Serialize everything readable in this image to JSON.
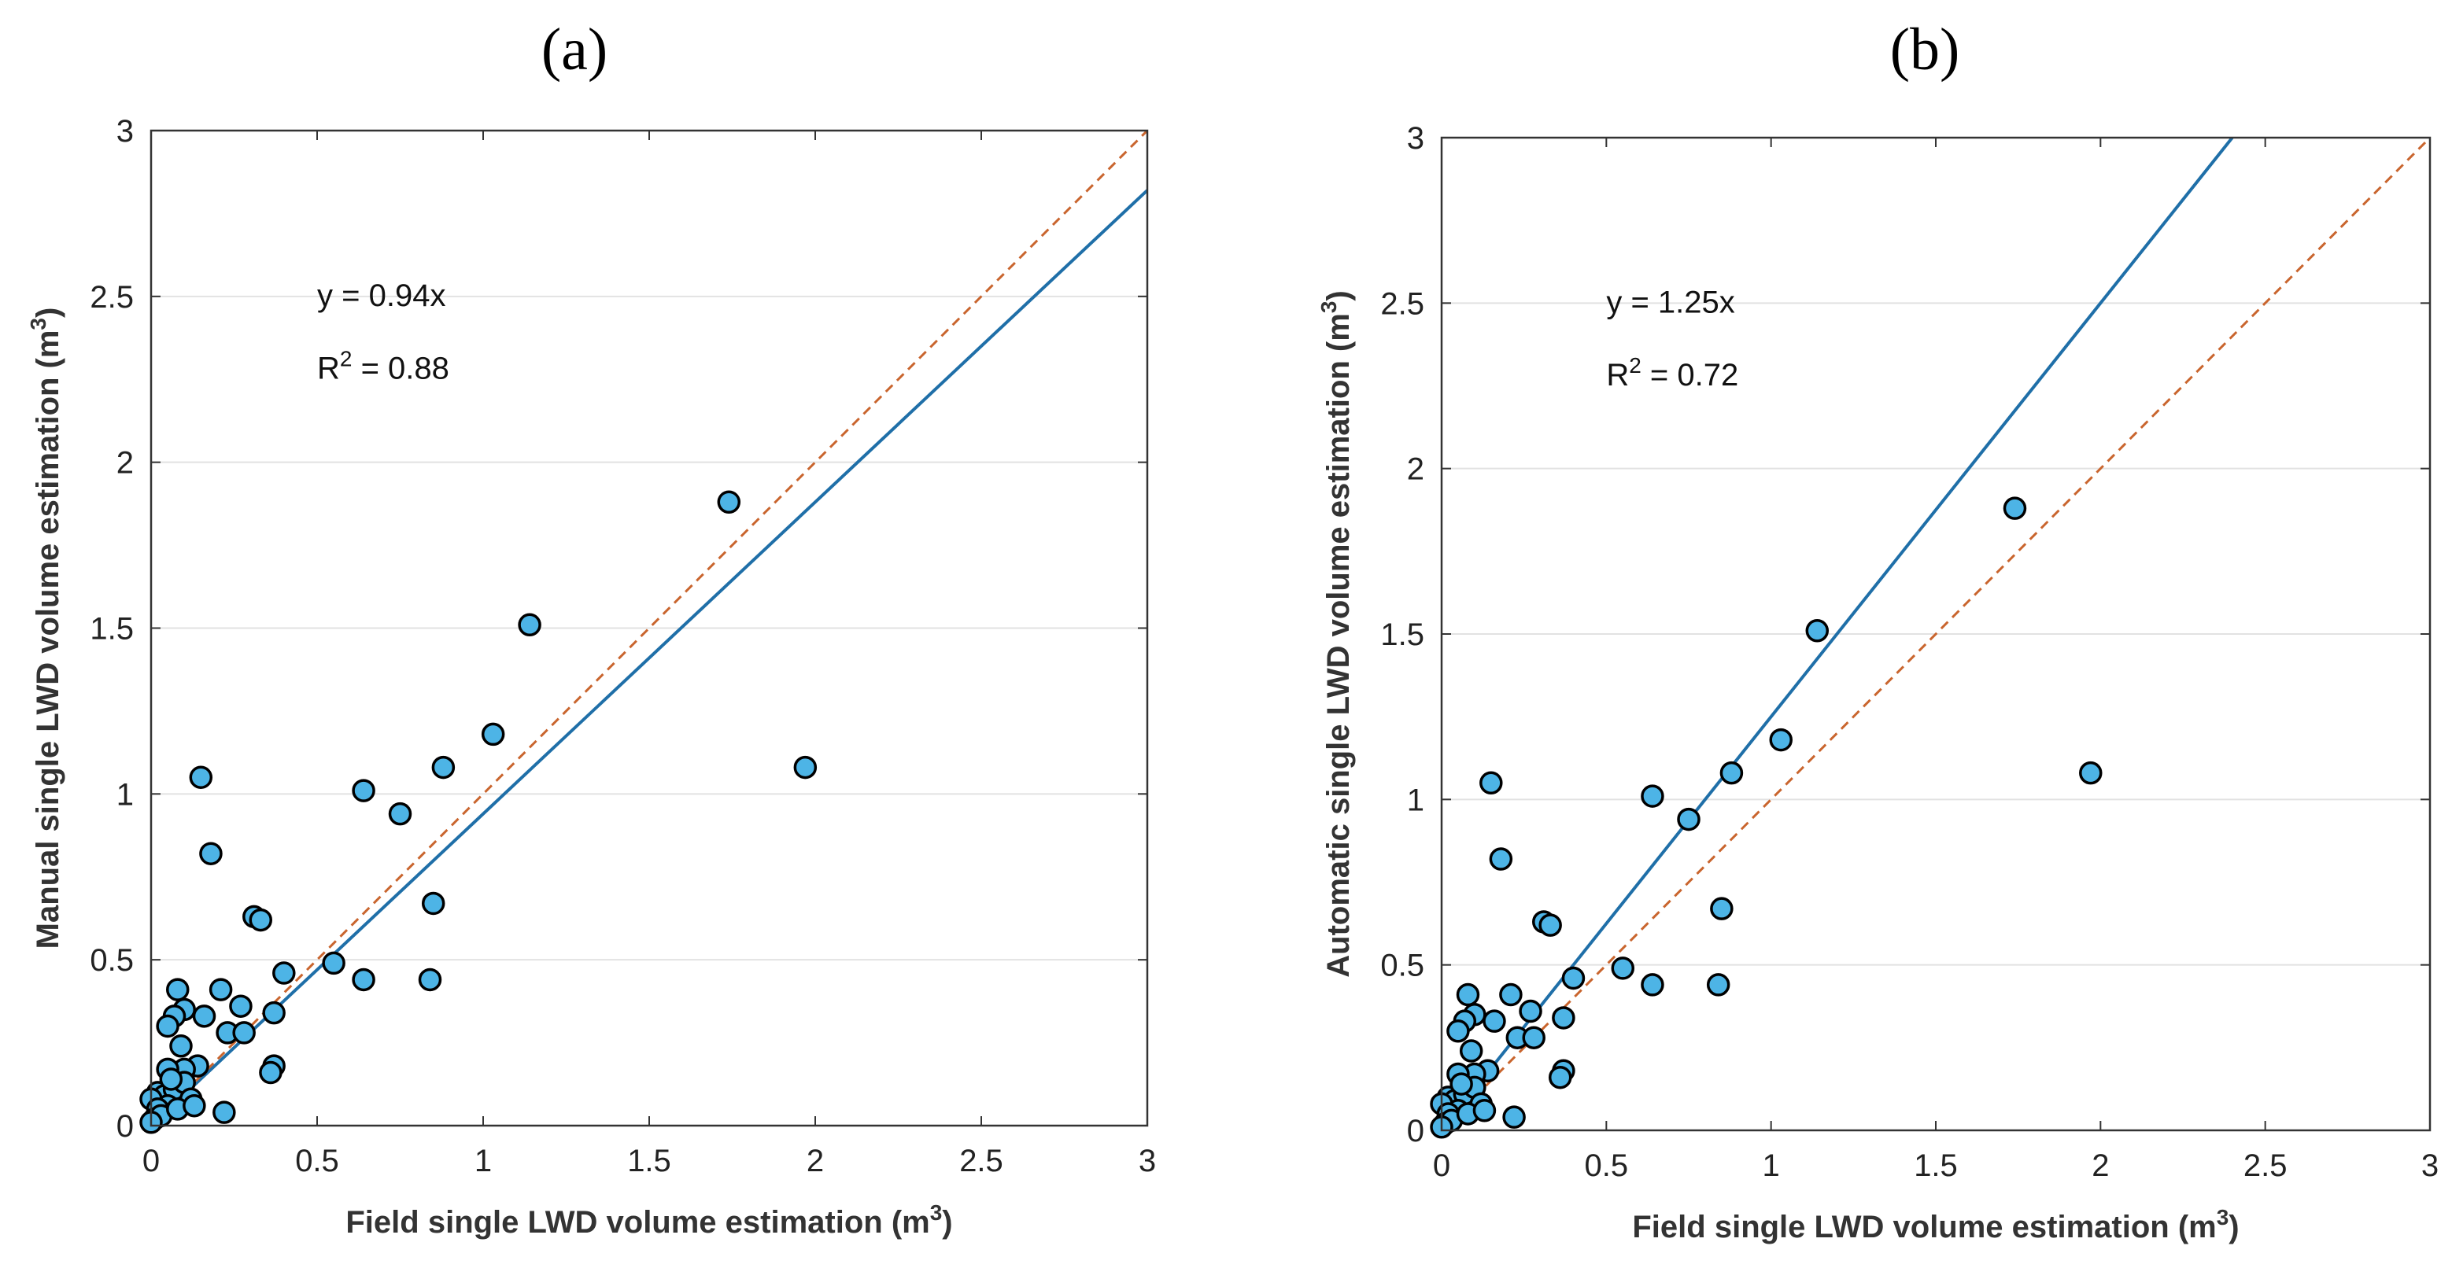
{
  "chart_data": [
    {
      "type": "scatter",
      "panel_label": "(a)",
      "xlabel": "Field  single LWD volume estimation (m",
      "xlabel_sup": "3",
      "xlabel_end": ")",
      "ylabel": "Manual single LWD volume estimation (m",
      "ylabel_sup": "3",
      "ylabel_end": ")",
      "xlim": [
        0,
        3
      ],
      "ylim": [
        0,
        3
      ],
      "xticks": [
        "0",
        "0.5",
        "1",
        "1.5",
        "2",
        "2.5",
        "3"
      ],
      "yticks": [
        "0",
        "0.5",
        "1",
        "1.5",
        "2",
        "2.5",
        "3"
      ],
      "grid": "horizontal",
      "fit_slope": 0.94,
      "annotation_eq": "y = 0.94x",
      "annotation_r2_pre": "R",
      "annotation_r2_sup": "2",
      "annotation_r2_post": " = 0.88",
      "series": [
        {
          "name": "fit",
          "type": "line",
          "color": "#1f6fa8",
          "x": [
            0,
            3
          ],
          "y": [
            0,
            2.82
          ]
        },
        {
          "name": "1:1",
          "type": "line",
          "style": "dashed",
          "color": "#c9652e",
          "x": [
            0,
            3
          ],
          "y": [
            0,
            3
          ]
        },
        {
          "name": "LWD",
          "type": "scatter",
          "color": "#4db4e6",
          "edge": "#000000",
          "points": [
            [
              1.74,
              1.88
            ],
            [
              1.14,
              1.51
            ],
            [
              1.03,
              1.18
            ],
            [
              0.88,
              1.08
            ],
            [
              1.97,
              1.08
            ],
            [
              0.15,
              1.05
            ],
            [
              0.64,
              1.01
            ],
            [
              0.75,
              0.94
            ],
            [
              0.18,
              0.82
            ],
            [
              0.85,
              0.67
            ],
            [
              0.31,
              0.63
            ],
            [
              0.33,
              0.62
            ],
            [
              0.55,
              0.49
            ],
            [
              0.4,
              0.46
            ],
            [
              0.64,
              0.44
            ],
            [
              0.84,
              0.44
            ],
            [
              0.08,
              0.41
            ],
            [
              0.21,
              0.41
            ],
            [
              0.1,
              0.35
            ],
            [
              0.27,
              0.36
            ],
            [
              0.37,
              0.34
            ],
            [
              0.07,
              0.33
            ],
            [
              0.16,
              0.33
            ],
            [
              0.05,
              0.3
            ],
            [
              0.23,
              0.28
            ],
            [
              0.28,
              0.28
            ],
            [
              0.09,
              0.24
            ],
            [
              0.37,
              0.18
            ],
            [
              0.36,
              0.16
            ],
            [
              0.14,
              0.18
            ],
            [
              0.1,
              0.17
            ],
            [
              0.05,
              0.17
            ],
            [
              0.02,
              0.1
            ],
            [
              0.04,
              0.09
            ],
            [
              0.07,
              0.11
            ],
            [
              0.1,
              0.13
            ],
            [
              0.12,
              0.08
            ],
            [
              0.05,
              0.06
            ],
            [
              0.0,
              0.08
            ],
            [
              0.02,
              0.05
            ],
            [
              0.01,
              0.02
            ],
            [
              0.03,
              0.03
            ],
            [
              0.08,
              0.05
            ],
            [
              0.06,
              0.14
            ],
            [
              0.13,
              0.06
            ],
            [
              0.22,
              0.04
            ],
            [
              0.0,
              0.01
            ]
          ]
        }
      ]
    },
    {
      "type": "scatter",
      "panel_label": "(b)",
      "xlabel": "Field  single LWD volume estimation (m",
      "xlabel_sup": "3",
      "xlabel_end": ")",
      "ylabel": "Automatic single LWD volume estimation (m",
      "ylabel_sup": "3",
      "ylabel_end": ")",
      "xlim": [
        0,
        3
      ],
      "ylim": [
        0,
        3
      ],
      "xticks": [
        "0",
        "0.5",
        "1",
        "1.5",
        "2",
        "2.5",
        "3"
      ],
      "yticks": [
        "0",
        "0.5",
        "1",
        "1.5",
        "2",
        "2.5",
        "3"
      ],
      "grid": "horizontal",
      "fit_slope": 1.25,
      "annotation_eq": "y = 1.25x",
      "annotation_r2_pre": "R",
      "annotation_r2_sup": "2",
      "annotation_r2_post": " = 0.72",
      "series": [
        {
          "name": "fit",
          "type": "line",
          "color": "#1f6fa8",
          "x": [
            0,
            2.4
          ],
          "y": [
            0,
            3
          ]
        },
        {
          "name": "1:1",
          "type": "line",
          "style": "dashed",
          "color": "#c9652e",
          "x": [
            0,
            3
          ],
          "y": [
            0,
            3
          ]
        },
        {
          "name": "LWD",
          "type": "scatter",
          "color": "#4db4e6",
          "edge": "#000000",
          "points": [
            [
              1.74,
              1.88
            ],
            [
              1.14,
              1.51
            ],
            [
              1.03,
              1.18
            ],
            [
              0.88,
              1.08
            ],
            [
              1.97,
              1.08
            ],
            [
              0.15,
              1.05
            ],
            [
              0.64,
              1.01
            ],
            [
              0.75,
              0.94
            ],
            [
              0.18,
              0.82
            ],
            [
              0.85,
              0.67
            ],
            [
              0.31,
              0.63
            ],
            [
              0.33,
              0.62
            ],
            [
              0.55,
              0.49
            ],
            [
              0.4,
              0.46
            ],
            [
              0.64,
              0.44
            ],
            [
              0.84,
              0.44
            ],
            [
              0.08,
              0.41
            ],
            [
              0.21,
              0.41
            ],
            [
              0.1,
              0.35
            ],
            [
              0.27,
              0.36
            ],
            [
              0.37,
              0.34
            ],
            [
              0.07,
              0.33
            ],
            [
              0.16,
              0.33
            ],
            [
              0.05,
              0.3
            ],
            [
              0.23,
              0.28
            ],
            [
              0.28,
              0.28
            ],
            [
              0.09,
              0.24
            ],
            [
              0.37,
              0.18
            ],
            [
              0.36,
              0.16
            ],
            [
              0.14,
              0.18
            ],
            [
              0.1,
              0.17
            ],
            [
              0.05,
              0.17
            ],
            [
              0.02,
              0.1
            ],
            [
              0.04,
              0.09
            ],
            [
              0.07,
              0.11
            ],
            [
              0.1,
              0.13
            ],
            [
              0.12,
              0.08
            ],
            [
              0.05,
              0.06
            ],
            [
              0.0,
              0.08
            ],
            [
              0.02,
              0.05
            ],
            [
              0.01,
              0.02
            ],
            [
              0.03,
              0.03
            ],
            [
              0.08,
              0.05
            ],
            [
              0.06,
              0.14
            ],
            [
              0.13,
              0.06
            ],
            [
              0.22,
              0.04
            ],
            [
              0.0,
              0.01
            ]
          ]
        }
      ]
    }
  ]
}
